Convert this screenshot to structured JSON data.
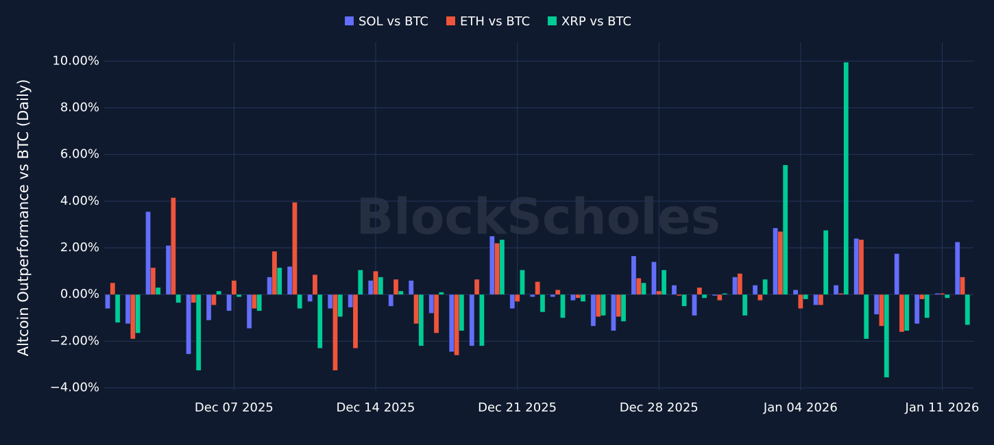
{
  "chart_data": {
    "type": "bar",
    "watermark": "BlockScholes",
    "y_label": "Altcoin Outperformance vs BTC (Daily)",
    "x": [
      "2025-12-01",
      "2025-12-02",
      "2025-12-03",
      "2025-12-04",
      "2025-12-05",
      "2025-12-06",
      "2025-12-07",
      "2025-12-08",
      "2025-12-09",
      "2025-12-10",
      "2025-12-11",
      "2025-12-12",
      "2025-12-13",
      "2025-12-14",
      "2025-12-15",
      "2025-12-16",
      "2025-12-17",
      "2025-12-18",
      "2025-12-19",
      "2025-12-20",
      "2025-12-21",
      "2025-12-22",
      "2025-12-23",
      "2025-12-24",
      "2025-12-25",
      "2025-12-26",
      "2025-12-27",
      "2025-12-28",
      "2025-12-29",
      "2025-12-30",
      "2025-12-31",
      "2026-01-01",
      "2026-01-02",
      "2026-01-03",
      "2026-01-04",
      "2026-01-05",
      "2026-01-06",
      "2026-01-07",
      "2026-01-08",
      "2026-01-09",
      "2026-01-10",
      "2026-01-11",
      "2026-01-12"
    ],
    "series": [
      {
        "name": "SOL vs BTC",
        "color": "#636efa",
        "values": [
          -0.6,
          -1.25,
          3.55,
          2.1,
          -2.55,
          -1.1,
          -0.7,
          -1.45,
          0.75,
          1.2,
          -0.3,
          -0.6,
          -0.55,
          0.6,
          -0.5,
          0.6,
          -0.8,
          -2.45,
          -2.2,
          2.5,
          -0.6,
          -0.1,
          -0.1,
          -0.25,
          -1.35,
          -1.55,
          1.65,
          1.4,
          0.4,
          -0.9,
          -0.05,
          0.75,
          0.4,
          2.85,
          0.2,
          -0.45,
          0.4,
          2.4,
          -0.85,
          1.75,
          -1.25,
          0.05,
          2.25
        ]
      },
      {
        "name": "ETH vs BTC",
        "color": "#ef553b",
        "values": [
          0.5,
          -1.9,
          1.15,
          4.15,
          -0.35,
          -0.45,
          0.6,
          -0.6,
          1.85,
          3.95,
          0.85,
          -3.25,
          -2.3,
          1.0,
          0.65,
          -1.25,
          -1.65,
          -2.6,
          0.65,
          2.2,
          -0.3,
          0.55,
          0.2,
          -0.15,
          -0.95,
          -0.95,
          0.7,
          0.15,
          -0.05,
          0.3,
          -0.25,
          0.9,
          -0.25,
          2.7,
          -0.6,
          -0.45,
          0.05,
          2.35,
          -1.35,
          -1.6,
          -0.2,
          0.05,
          0.75
        ]
      },
      {
        "name": "XRP vs BTC",
        "color": "#00cc96",
        "values": [
          -1.2,
          -1.65,
          0.3,
          -0.35,
          -3.25,
          0.15,
          -0.1,
          -0.7,
          1.15,
          -0.6,
          -2.3,
          -0.95,
          1.05,
          0.75,
          0.15,
          -2.2,
          0.1,
          -1.55,
          -2.2,
          2.35,
          1.05,
          -0.75,
          -1.0,
          -0.3,
          -0.9,
          -1.15,
          0.5,
          1.05,
          -0.5,
          -0.15,
          0.05,
          -0.9,
          0.65,
          5.55,
          -0.2,
          2.75,
          9.95,
          -1.9,
          -3.55,
          -1.55,
          -1.0,
          -0.15,
          -1.3
        ]
      }
    ],
    "xlim": [
      "2025-11-30T14:00",
      "2026-01-12T13:00"
    ],
    "xticks": [
      {
        "value": "2025-12-07",
        "label": "Dec 07 2025"
      },
      {
        "value": "2025-12-14",
        "label": "Dec 14 2025"
      },
      {
        "value": "2025-12-21",
        "label": "Dec 21 2025"
      },
      {
        "value": "2025-12-28",
        "label": "Dec 28 2025"
      },
      {
        "value": "2026-01-04",
        "label": "Jan 04 2026"
      },
      {
        "value": "2026-01-11",
        "label": "Jan 11 2026"
      }
    ],
    "ylim": [
      -4.1,
      10.8
    ],
    "yticks": [
      {
        "value": -4,
        "label": "−4.00%"
      },
      {
        "value": -2,
        "label": "−2.00%"
      },
      {
        "value": 0,
        "label": "0.00%"
      },
      {
        "value": 2,
        "label": "2.00%"
      },
      {
        "value": 4,
        "label": "4.00%"
      },
      {
        "value": 6,
        "label": "6.00%"
      },
      {
        "value": 8,
        "label": "8.00%"
      },
      {
        "value": 10,
        "label": "10.00%"
      }
    ],
    "grid": true,
    "legend": "top"
  }
}
